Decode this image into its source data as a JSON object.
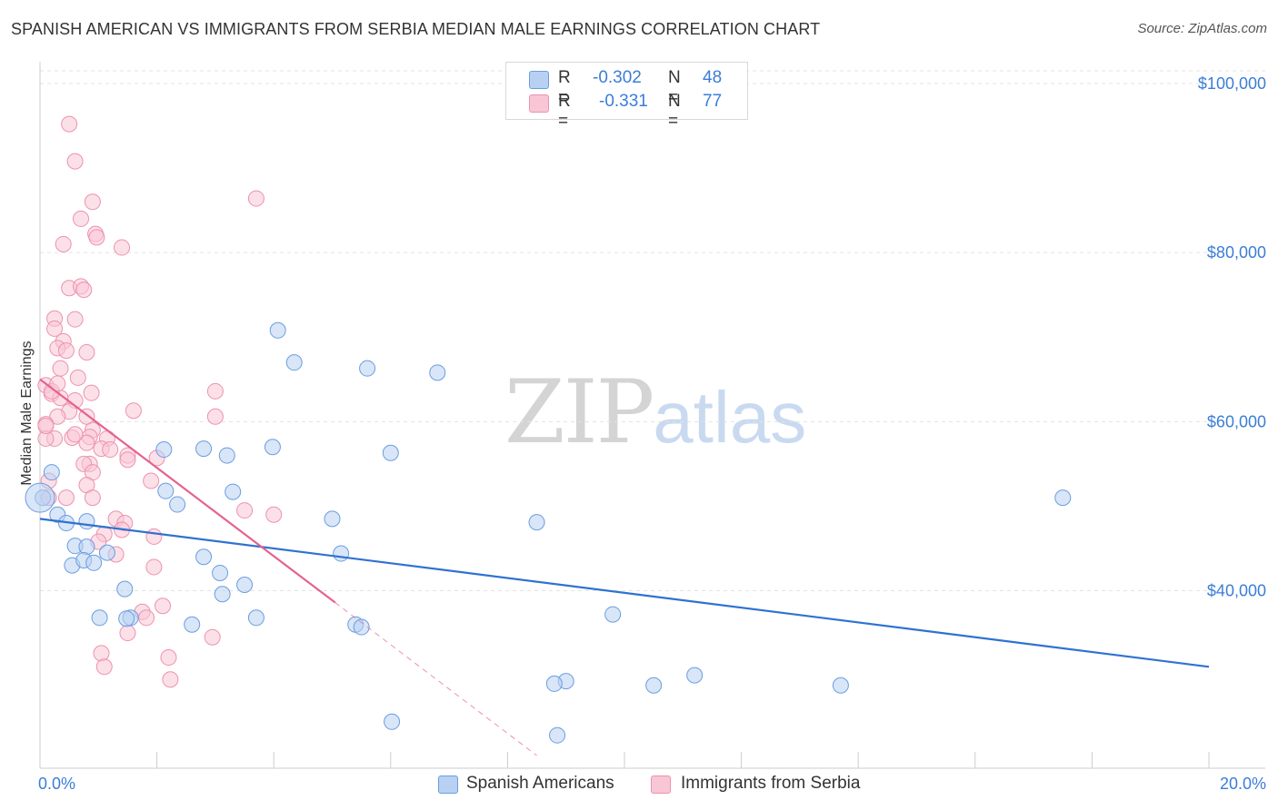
{
  "title": "SPANISH AMERICAN VS IMMIGRANTS FROM SERBIA MEDIAN MALE EARNINGS CORRELATION CHART",
  "source": "Source: ZipAtlas.com",
  "watermark": {
    "zip": "ZIP",
    "atlas": "atlas"
  },
  "legend": {
    "r_label": "R =",
    "n_label": "N =",
    "series": [
      {
        "r": "-0.302",
        "n": "48"
      },
      {
        "r": "-0.331",
        "n": "77"
      }
    ]
  },
  "colors": {
    "blue_fill": "#b8d1f3",
    "blue_stroke": "#6b9de0",
    "blue_line": "#2f72d0",
    "pink_fill": "#f9c6d6",
    "pink_stroke": "#ec92b0",
    "pink_line": "#e5628f",
    "axis_text": "#3b7dd8"
  },
  "chart_data": {
    "type": "scatter",
    "title": "SPANISH AMERICAN VS IMMIGRANTS FROM SERBIA MEDIAN MALE EARNINGS CORRELATION CHART",
    "xlabel": "",
    "ylabel": "Median Male Earnings",
    "xlim": [
      0,
      20
    ],
    "ylim": [
      19000,
      101500
    ],
    "x_tick_labels": [
      "0.0%",
      "20.0%"
    ],
    "y_ticks": [
      40000,
      60000,
      80000,
      100000
    ],
    "y_tick_labels": [
      "$40,000",
      "$60,000",
      "$80,000",
      "$100,000"
    ],
    "series": [
      {
        "name": "Spanish Americans",
        "points": [
          [
            0.2,
            54000
          ],
          [
            0.05,
            51000
          ],
          [
            0.3,
            49000
          ],
          [
            0.45,
            48000
          ],
          [
            0.8,
            48200
          ],
          [
            0.6,
            45300
          ],
          [
            0.8,
            45200
          ],
          [
            0.55,
            43000
          ],
          [
            1.15,
            44500
          ],
          [
            0.75,
            43600
          ],
          [
            0.92,
            43300
          ],
          [
            1.45,
            40200
          ],
          [
            1.55,
            36800
          ],
          [
            1.48,
            36700
          ],
          [
            1.02,
            36800
          ],
          [
            2.15,
            51800
          ],
          [
            2.35,
            50200
          ],
          [
            2.12,
            56700
          ],
          [
            2.8,
            56800
          ],
          [
            3.2,
            56000
          ],
          [
            3.3,
            51700
          ],
          [
            2.8,
            44000
          ],
          [
            3.08,
            42100
          ],
          [
            3.12,
            39600
          ],
          [
            3.5,
            40700
          ],
          [
            2.6,
            36000
          ],
          [
            3.7,
            36800
          ],
          [
            4.07,
            70800
          ],
          [
            4.35,
            67000
          ],
          [
            3.98,
            57000
          ],
          [
            5.6,
            66300
          ],
          [
            6.0,
            56300
          ],
          [
            5.0,
            48500
          ],
          [
            5.15,
            44400
          ],
          [
            5.4,
            36000
          ],
          [
            5.5,
            35700
          ],
          [
            6.8,
            65800
          ],
          [
            8.5,
            48100
          ],
          [
            9.8,
            37200
          ],
          [
            9.0,
            29300
          ],
          [
            8.8,
            29000
          ],
          [
            10.5,
            28800
          ],
          [
            11.2,
            30000
          ],
          [
            13.7,
            28800
          ],
          [
            17.5,
            51000
          ],
          [
            6.02,
            24500
          ],
          [
            8.85,
            22900
          ],
          [
            0.0,
            51000
          ]
        ]
      },
      {
        "name": "Immigrants from Serbia",
        "points": [
          [
            0.5,
            95200
          ],
          [
            0.6,
            90800
          ],
          [
            0.9,
            86000
          ],
          [
            3.7,
            86400
          ],
          [
            0.7,
            84000
          ],
          [
            0.4,
            81000
          ],
          [
            0.95,
            82200
          ],
          [
            0.97,
            81800
          ],
          [
            1.4,
            80600
          ],
          [
            0.5,
            75800
          ],
          [
            0.7,
            76000
          ],
          [
            0.75,
            75600
          ],
          [
            0.25,
            72200
          ],
          [
            0.6,
            72100
          ],
          [
            0.25,
            71000
          ],
          [
            0.4,
            69500
          ],
          [
            0.3,
            68700
          ],
          [
            0.45,
            68400
          ],
          [
            0.8,
            68200
          ],
          [
            0.35,
            66300
          ],
          [
            0.65,
            65200
          ],
          [
            0.1,
            64300
          ],
          [
            0.2,
            63300
          ],
          [
            0.35,
            62800
          ],
          [
            0.6,
            62500
          ],
          [
            0.88,
            63400
          ],
          [
            0.2,
            63600
          ],
          [
            3.0,
            63600
          ],
          [
            1.6,
            61300
          ],
          [
            0.5,
            61200
          ],
          [
            0.3,
            60600
          ],
          [
            0.8,
            60600
          ],
          [
            3.0,
            60600
          ],
          [
            0.1,
            59700
          ],
          [
            0.9,
            59000
          ],
          [
            0.25,
            58000
          ],
          [
            0.55,
            58100
          ],
          [
            0.85,
            58200
          ],
          [
            1.15,
            58000
          ],
          [
            0.8,
            57500
          ],
          [
            0.1,
            58000
          ],
          [
            1.05,
            56800
          ],
          [
            1.5,
            56000
          ],
          [
            2.0,
            55700
          ],
          [
            1.5,
            55500
          ],
          [
            0.85,
            55000
          ],
          [
            0.75,
            55000
          ],
          [
            0.9,
            54000
          ],
          [
            0.15,
            53000
          ],
          [
            1.9,
            53000
          ],
          [
            0.8,
            52500
          ],
          [
            0.9,
            51000
          ],
          [
            0.45,
            51000
          ],
          [
            0.15,
            51000
          ],
          [
            3.5,
            49500
          ],
          [
            4.0,
            49000
          ],
          [
            1.3,
            48500
          ],
          [
            1.45,
            48000
          ],
          [
            1.4,
            47200
          ],
          [
            1.95,
            46400
          ],
          [
            1.1,
            46700
          ],
          [
            1.0,
            45800
          ],
          [
            1.3,
            44300
          ],
          [
            1.95,
            42800
          ],
          [
            2.1,
            38200
          ],
          [
            1.75,
            37500
          ],
          [
            1.82,
            36800
          ],
          [
            1.5,
            35000
          ],
          [
            2.95,
            34500
          ],
          [
            1.05,
            32600
          ],
          [
            2.2,
            32100
          ],
          [
            1.1,
            31000
          ],
          [
            2.23,
            29500
          ],
          [
            0.1,
            59500
          ],
          [
            0.6,
            58500
          ],
          [
            1.2,
            56700
          ],
          [
            0.3,
            64500
          ]
        ]
      }
    ],
    "trend_lines": [
      {
        "series": "Spanish Americans",
        "from": [
          0,
          48500
        ],
        "to": [
          20,
          31000
        ],
        "style": "solid"
      },
      {
        "series": "Immigrants from Serbia",
        "from": [
          0,
          65000
        ],
        "to": [
          5.05,
          38600
        ],
        "style": "solid"
      },
      {
        "series": "Immigrants from Serbia",
        "from": [
          5.05,
          38600
        ],
        "to": [
          8.5,
          20500
        ],
        "style": "dashed"
      }
    ]
  }
}
